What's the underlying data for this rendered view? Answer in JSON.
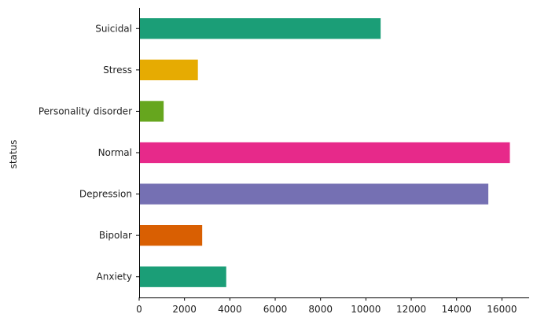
{
  "chart_data": {
    "type": "bar",
    "orientation": "horizontal",
    "title": "",
    "xlabel": "",
    "ylabel": "status",
    "categories": [
      "Suicidal",
      "Stress",
      "Personality disorder",
      "Normal",
      "Depression",
      "Bipolar",
      "Anxiety"
    ],
    "values": [
      10650,
      2590,
      1080,
      16350,
      15400,
      2780,
      3840
    ],
    "colors": [
      "#1b9e77",
      "#e6ab02",
      "#66a61e",
      "#e7298a",
      "#7570b3",
      "#d95f02",
      "#1b9e77"
    ],
    "xlim": [
      0,
      17200
    ],
    "xticks": [
      0,
      2000,
      4000,
      6000,
      8000,
      10000,
      12000,
      14000,
      16000
    ],
    "grid": false
  }
}
